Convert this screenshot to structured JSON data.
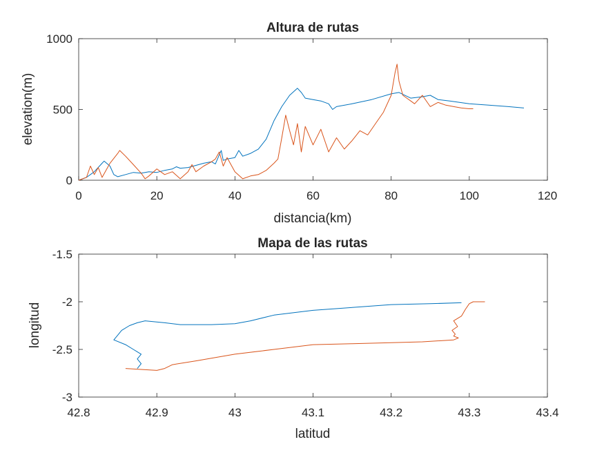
{
  "chart_data": [
    {
      "type": "line",
      "title": "Altura de rutas",
      "xlabel": "distancia(km)",
      "ylabel": "elevation(m)",
      "xlim": [
        0,
        120
      ],
      "ylim": [
        0,
        1000
      ],
      "xticks": [
        "0",
        "20",
        "40",
        "60",
        "80",
        "100",
        "120"
      ],
      "yticks": [
        "0",
        "500",
        "1000"
      ],
      "grid": false,
      "series": [
        {
          "color": "#0072BD",
          "x": [
            0,
            2,
            4,
            6,
            6.5,
            8,
            9,
            10,
            12,
            14,
            16,
            18,
            20,
            22,
            24,
            25,
            26,
            28,
            30,
            32,
            34,
            35,
            36,
            36.5,
            37,
            38,
            40,
            41,
            42,
            44,
            46,
            48,
            50,
            52,
            54,
            56,
            57,
            58,
            60,
            62,
            64,
            65,
            66,
            70,
            75,
            80,
            82,
            85,
            88,
            90,
            92,
            95,
            100,
            105,
            110,
            112,
            114
          ],
          "y": [
            0,
            20,
            60,
            120,
            135,
            100,
            40,
            25,
            40,
            55,
            50,
            60,
            55,
            70,
            80,
            95,
            85,
            90,
            105,
            120,
            130,
            115,
            180,
            210,
            140,
            150,
            160,
            210,
            170,
            190,
            220,
            290,
            420,
            520,
            600,
            650,
            620,
            580,
            570,
            560,
            540,
            500,
            520,
            540,
            570,
            610,
            620,
            580,
            590,
            600,
            570,
            560,
            540,
            530,
            520,
            515,
            510
          ]
        },
        {
          "color": "#D95319",
          "x": [
            0,
            2,
            3,
            4,
            5,
            6,
            8,
            10,
            10.5,
            12,
            14,
            16,
            17,
            18,
            20,
            22,
            24,
            26,
            28,
            29,
            30,
            32,
            34,
            35,
            36,
            37,
            38,
            40,
            42,
            44,
            46,
            48,
            50,
            51,
            52,
            53,
            54,
            55,
            56,
            57,
            58,
            60,
            62,
            64,
            66,
            68,
            70,
            72,
            74,
            76,
            78,
            80,
            81,
            81.5,
            82,
            83,
            84,
            85,
            86,
            88,
            90,
            92,
            94,
            96,
            98,
            100,
            101
          ],
          "y": [
            0,
            20,
            100,
            40,
            90,
            20,
            120,
            190,
            210,
            170,
            110,
            50,
            10,
            30,
            80,
            40,
            60,
            10,
            60,
            110,
            60,
            100,
            130,
            150,
            200,
            100,
            160,
            60,
            10,
            30,
            40,
            70,
            120,
            150,
            300,
            460,
            350,
            250,
            400,
            200,
            380,
            250,
            360,
            200,
            300,
            220,
            280,
            350,
            320,
            400,
            480,
            600,
            760,
            820,
            700,
            600,
            580,
            560,
            540,
            600,
            520,
            550,
            530,
            520,
            510,
            505,
            505
          ]
        }
      ]
    },
    {
      "type": "line",
      "title": "Mapa de las rutas",
      "xlabel": "latitud",
      "ylabel": "longitud",
      "xlim": [
        42.8,
        43.4
      ],
      "ylim": [
        -3,
        -1.5
      ],
      "xticks": [
        "42.8",
        "42.9",
        "43",
        "43.1",
        "43.2",
        "43.3",
        "43.4"
      ],
      "yticks": [
        "-1.5",
        "-2",
        "-2.5",
        "-3"
      ],
      "grid": false,
      "series": [
        {
          "color": "#0072BD",
          "x": [
            43.29,
            43.25,
            43.2,
            43.15,
            43.1,
            43.05,
            43.02,
            43.0,
            42.97,
            42.95,
            42.93,
            42.91,
            42.885,
            42.875,
            42.865,
            42.855,
            42.85,
            42.845,
            42.86,
            42.87,
            42.88,
            42.875,
            42.88,
            42.875
          ],
          "x_note": "",
          "y": [
            -2.01,
            -2.02,
            -2.03,
            -2.06,
            -2.09,
            -2.14,
            -2.2,
            -2.23,
            -2.24,
            -2.24,
            -2.24,
            -2.22,
            -2.2,
            -2.22,
            -2.25,
            -2.3,
            -2.35,
            -2.4,
            -2.45,
            -2.5,
            -2.55,
            -2.6,
            -2.65,
            -2.7
          ]
        },
        {
          "color": "#D95319",
          "x": [
            43.32,
            43.305,
            43.3,
            43.295,
            43.29,
            43.28,
            43.285,
            43.278,
            43.282,
            43.28,
            43.286,
            43.28,
            43.24,
            43.2,
            43.15,
            43.1,
            43.05,
            43.0,
            42.95,
            42.92,
            42.91,
            42.9,
            42.88,
            42.86
          ],
          "y": [
            -2.0,
            -2.0,
            -2.02,
            -2.08,
            -2.15,
            -2.2,
            -2.26,
            -2.3,
            -2.34,
            -2.36,
            -2.38,
            -2.4,
            -2.42,
            -2.43,
            -2.44,
            -2.45,
            -2.5,
            -2.55,
            -2.62,
            -2.66,
            -2.7,
            -2.72,
            -2.71,
            -2.7
          ]
        }
      ]
    }
  ]
}
